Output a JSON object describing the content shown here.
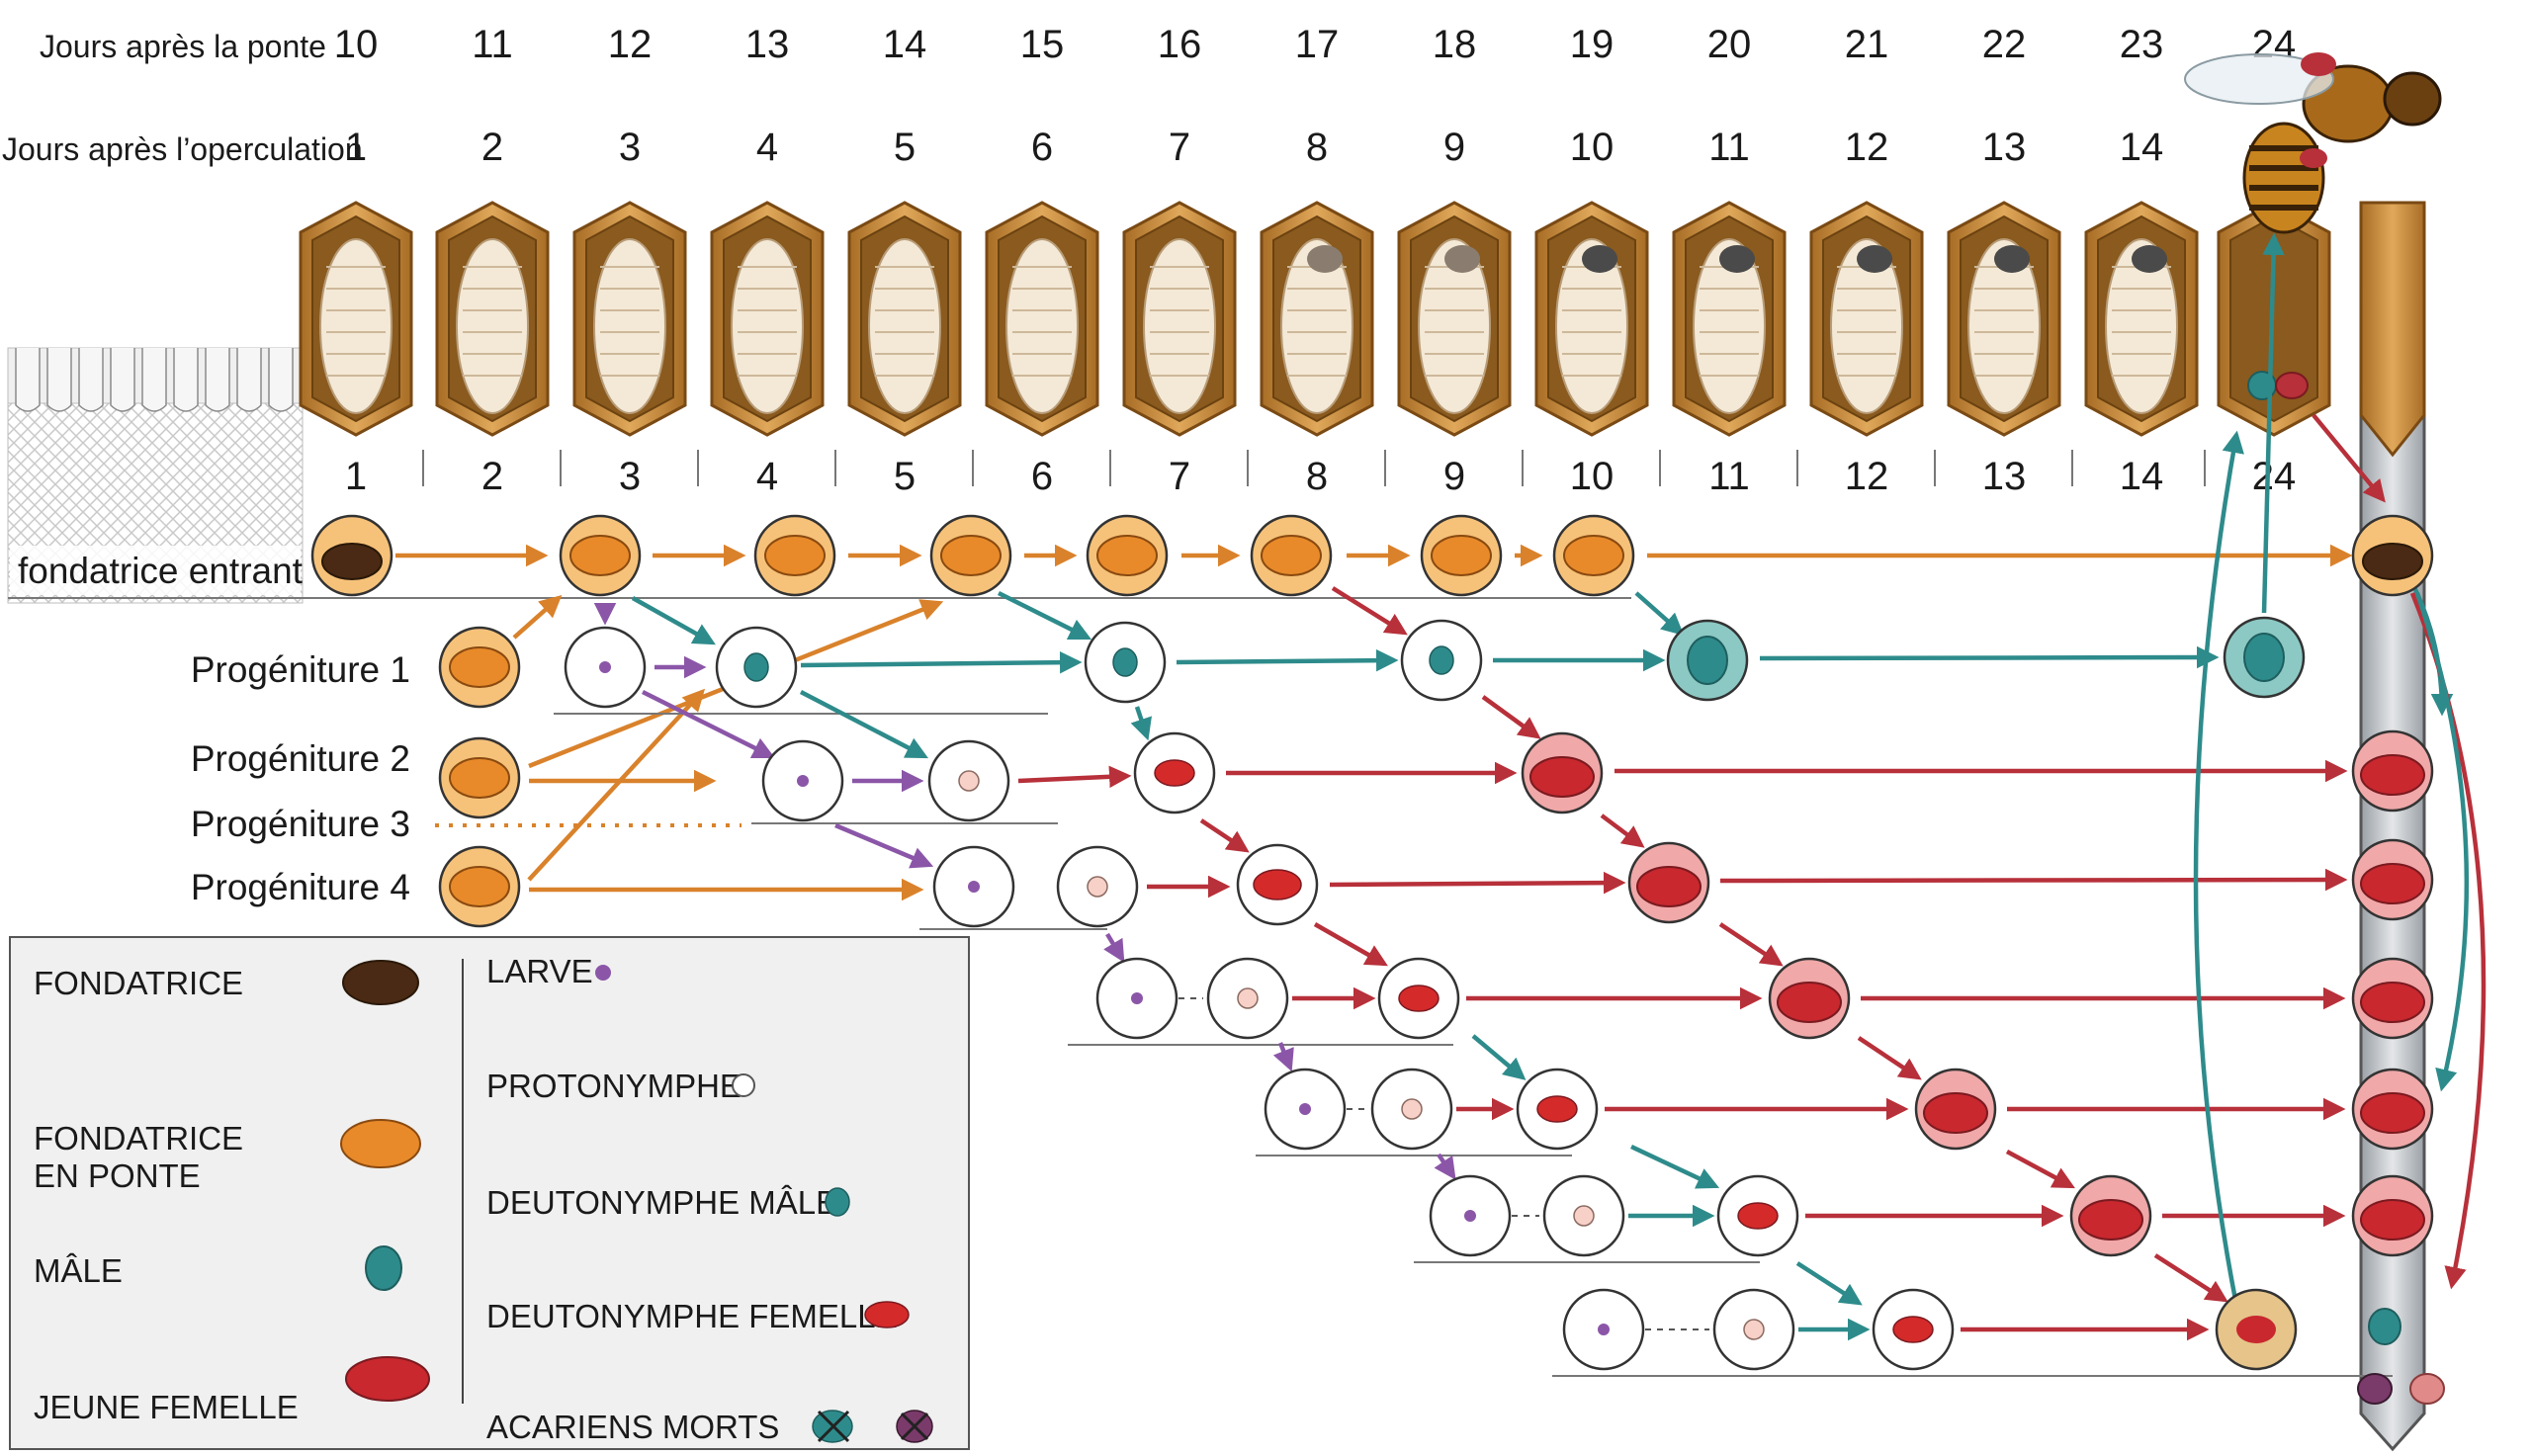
{
  "header": {
    "row1_label": "Jours après la ponte",
    "row1_days": [
      "10",
      "11",
      "12",
      "13",
      "14",
      "15",
      "16",
      "17",
      "18",
      "19",
      "20",
      "21",
      "22",
      "23",
      "24"
    ],
    "row2_label": "Jours après l’operculation",
    "row2_days": [
      "1",
      "2",
      "3",
      "4",
      "5",
      "6",
      "7",
      "8",
      "9",
      "10",
      "11",
      "12",
      "13",
      "14"
    ]
  },
  "cell_numbers": [
    "1",
    "2",
    "3",
    "4",
    "5",
    "6",
    "7",
    "8",
    "9",
    "10",
    "11",
    "12",
    "13",
    "14",
    "24"
  ],
  "rows": {
    "foundress": "fondatrice entrant",
    "p1": "Progéniture 1",
    "p2": "Progéniture 2",
    "p3": "Progéniture 3",
    "p4": "Progéniture 4"
  },
  "legend": {
    "fondatrice": "FONDATRICE",
    "fondatrice_ponte": "FONDATRICE\nEN PONTE",
    "male": "MÂLE",
    "jeune_femelle": "JEUNE FEMELLE",
    "larve": "LARVE",
    "protonymphe": "PROTONYMPHE",
    "deuto_male": "DEUTONYMPHE MÂLE",
    "deuto_femelle": "DEUTONYMPHE FEMELLE",
    "morts": "ACARIENS MORTS"
  },
  "colors": {
    "orange": "#d9822b",
    "teal": "#2e8b8b",
    "red": "#b7303a",
    "purple": "#8b56a8",
    "cell_brown": "#c8923f",
    "foundress_dark": "#4a2a14"
  }
}
